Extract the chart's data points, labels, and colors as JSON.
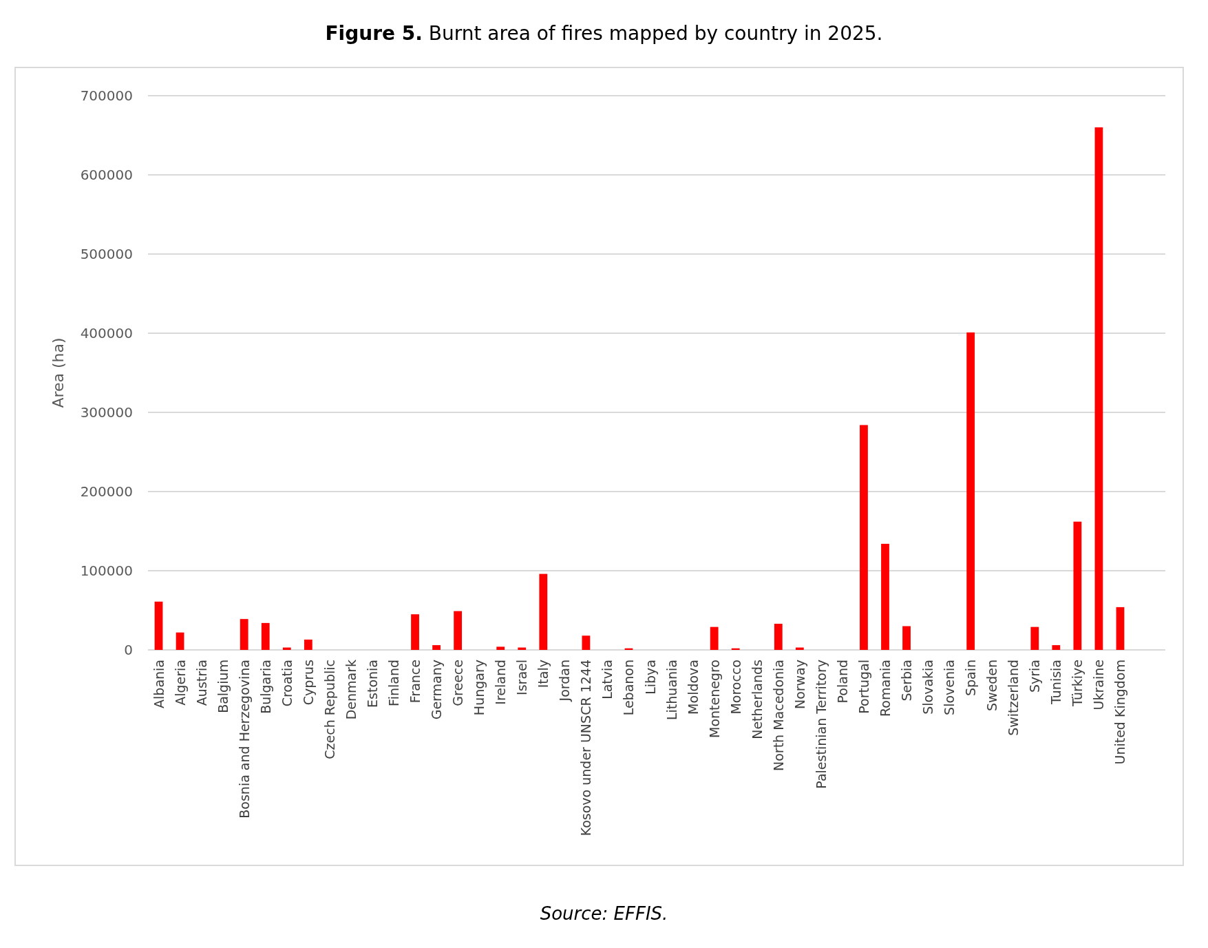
{
  "chart_data": {
    "type": "bar",
    "title": "Figure 5. Burnt area of fires mapped by country in 2025.",
    "ylabel": "Area (ha)",
    "annotations": [
      "Source: EFFIS."
    ],
    "categories": [
      "Albania",
      "Algeria",
      "Austria",
      "Balgium",
      "Bosnia and Herzegovina",
      "Bulgaria",
      "Croatia",
      "Cyprus",
      "Czech Republic",
      "Denmark",
      "Estonia",
      "Finland",
      "France",
      "Germany",
      "Greece",
      "Hungary",
      "Ireland",
      "Israel",
      "Italy",
      "Jordan",
      "Kosovo under UNSCR 1244",
      "Latvia",
      "Lebanon",
      "Libya",
      "Lithuania",
      "Moldova",
      "Montenegro",
      "Morocco",
      "Netherlands",
      "North Macedonia",
      "Norway",
      "Palestinian Territory",
      "Poland",
      "Portugal",
      "Romania",
      "Serbia",
      "Slovakia",
      "Slovenia",
      "Spain",
      "Sweden",
      "Switzerland",
      "Syria",
      "Tunisia",
      "Türkiye",
      "Ukraine",
      "United Kingdom"
    ],
    "values": [
      61000,
      22000,
      0,
      0,
      39000,
      34000,
      3000,
      13000,
      0,
      0,
      0,
      0,
      45000,
      6000,
      49000,
      0,
      4000,
      3000,
      96000,
      0,
      18000,
      0,
      2000,
      0,
      0,
      0,
      29000,
      2000,
      0,
      33000,
      3000,
      0,
      0,
      284000,
      134000,
      30000,
      0,
      0,
      401000,
      0,
      0,
      29000,
      6000,
      162000,
      660000,
      54000
    ],
    "color": "#ff0000",
    "ylim": [
      0,
      700000
    ],
    "yticks": [
      0,
      100000,
      200000,
      300000,
      400000,
      500000,
      600000,
      700000
    ],
    "grid": "y"
  }
}
